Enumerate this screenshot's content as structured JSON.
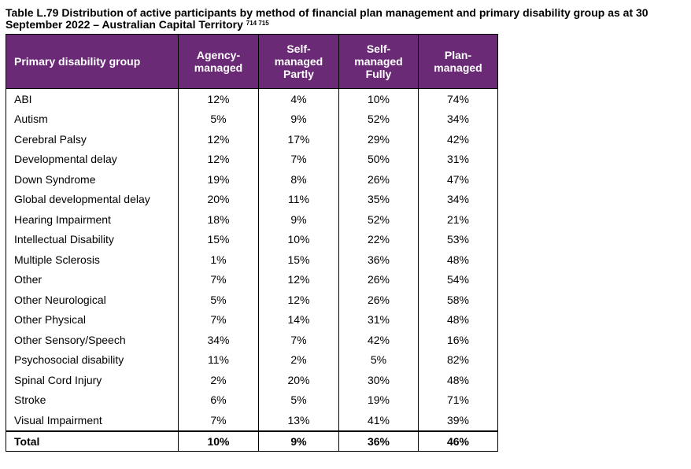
{
  "caption": {
    "text": "Table L.79 Distribution of active participants by method of financial plan management and primary disability group as at 30 September 2022 – Australian Capital Territory",
    "footnote_refs": "714 715"
  },
  "table": {
    "headers": [
      "Primary disability group",
      "Agency-\nmanaged",
      "Self-\nmanaged\nPartly",
      "Self-\nmanaged\nFully",
      "Plan-\nmanaged"
    ],
    "rows": [
      {
        "group": "ABI",
        "agency": "12%",
        "self_partly": "4%",
        "self_fully": "10%",
        "plan": "74%"
      },
      {
        "group": "Autism",
        "agency": "5%",
        "self_partly": "9%",
        "self_fully": "52%",
        "plan": "34%"
      },
      {
        "group": "Cerebral Palsy",
        "agency": "12%",
        "self_partly": "17%",
        "self_fully": "29%",
        "plan": "42%"
      },
      {
        "group": "Developmental delay",
        "agency": "12%",
        "self_partly": "7%",
        "self_fully": "50%",
        "plan": "31%"
      },
      {
        "group": "Down Syndrome",
        "agency": "19%",
        "self_partly": "8%",
        "self_fully": "26%",
        "plan": "47%"
      },
      {
        "group": "Global developmental delay",
        "agency": "20%",
        "self_partly": "11%",
        "self_fully": "35%",
        "plan": "34%"
      },
      {
        "group": "Hearing Impairment",
        "agency": "18%",
        "self_partly": "9%",
        "self_fully": "52%",
        "plan": "21%"
      },
      {
        "group": "Intellectual Disability",
        "agency": "15%",
        "self_partly": "10%",
        "self_fully": "22%",
        "plan": "53%"
      },
      {
        "group": "Multiple Sclerosis",
        "agency": "1%",
        "self_partly": "15%",
        "self_fully": "36%",
        "plan": "48%"
      },
      {
        "group": "Other",
        "agency": "7%",
        "self_partly": "12%",
        "self_fully": "26%",
        "plan": "54%"
      },
      {
        "group": "Other Neurological",
        "agency": "5%",
        "self_partly": "12%",
        "self_fully": "26%",
        "plan": "58%"
      },
      {
        "group": "Other Physical",
        "agency": "7%",
        "self_partly": "14%",
        "self_fully": "31%",
        "plan": "48%"
      },
      {
        "group": "Other Sensory/Speech",
        "agency": "34%",
        "self_partly": "7%",
        "self_fully": "42%",
        "plan": "16%"
      },
      {
        "group": "Psychosocial disability",
        "agency": "11%",
        "self_partly": "2%",
        "self_fully": "5%",
        "plan": "82%"
      },
      {
        "group": "Spinal Cord Injury",
        "agency": "2%",
        "self_partly": "20%",
        "self_fully": "30%",
        "plan": "48%"
      },
      {
        "group": "Stroke",
        "agency": "6%",
        "self_partly": "5%",
        "self_fully": "19%",
        "plan": "71%"
      },
      {
        "group": "Visual Impairment",
        "agency": "7%",
        "self_partly": "13%",
        "self_fully": "41%",
        "plan": "39%"
      }
    ],
    "total": {
      "group": "Total",
      "agency": "10%",
      "self_partly": "9%",
      "self_fully": "36%",
      "plan": "46%"
    }
  },
  "colors": {
    "header_background": "#6b2a76",
    "header_text": "#ffffff"
  }
}
